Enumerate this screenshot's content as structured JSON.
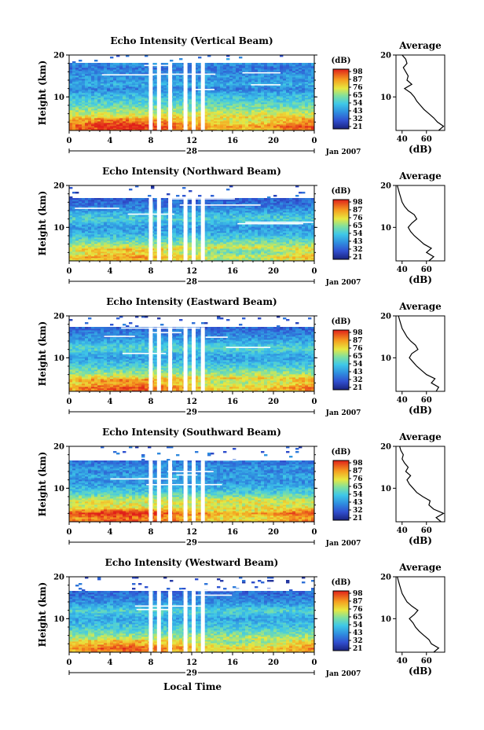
{
  "chart_data": [
    {
      "type": "heatmap",
      "title": "Echo Intensity (Vertical Beam)",
      "ylabel": "Height (km)",
      "y_ticks": [
        "20",
        "10"
      ],
      "x_ticks": [
        "0",
        "4",
        "8",
        "12",
        "16",
        "20",
        "0"
      ],
      "day_label": "28",
      "date_label": "Jan 2007",
      "colorbar_unit": "(dB)",
      "colorbar_ticks": [
        "98",
        "87",
        "76",
        "65",
        "54",
        "43",
        "32",
        "21"
      ],
      "profile_title": "Average",
      "profile_xlabel": "(dB)",
      "profile_x_ticks": [
        "40",
        "60"
      ],
      "profile_y_ticks": [
        "20",
        "10"
      ],
      "xlim": [
        0,
        24
      ],
      "ylim": [
        2,
        20
      ],
      "clim": [
        21,
        98
      ],
      "profile": {
        "height": [
          2,
          3,
          4,
          5,
          6,
          7,
          8,
          9,
          10,
          11,
          12,
          13,
          14,
          15,
          16,
          17,
          18,
          19,
          20
        ],
        "db": [
          70,
          74,
          69,
          66,
          62,
          58,
          55,
          52,
          50,
          47,
          42,
          48,
          44,
          45,
          43,
          41,
          44,
          43,
          40
        ]
      }
    },
    {
      "type": "heatmap",
      "title": "Echo Intensity (Northward Beam)",
      "ylabel": "Height (km)",
      "y_ticks": [
        "20",
        "10"
      ],
      "x_ticks": [
        "0",
        "4",
        "8",
        "12",
        "16",
        "20",
        "0"
      ],
      "day_label": "28",
      "date_label": "Jan 2007",
      "colorbar_unit": "(dB)",
      "colorbar_ticks": [
        "98",
        "87",
        "76",
        "65",
        "54",
        "43",
        "32",
        "21"
      ],
      "profile_title": "Average",
      "profile_xlabel": "(dB)",
      "profile_x_ticks": [
        "40",
        "60"
      ],
      "profile_y_ticks": [
        "20",
        "10"
      ],
      "xlim": [
        0,
        24
      ],
      "ylim": [
        2,
        20
      ],
      "clim": [
        21,
        98
      ],
      "profile": {
        "height": [
          2,
          3,
          4,
          5,
          6,
          7,
          8,
          9,
          10,
          11,
          12,
          13,
          14,
          15,
          16,
          17,
          18,
          19,
          20
        ],
        "db": [
          62,
          66,
          60,
          64,
          58,
          54,
          50,
          47,
          45,
          48,
          52,
          50,
          45,
          42,
          40,
          39,
          38,
          37,
          36
        ]
      }
    },
    {
      "type": "heatmap",
      "title": "Echo Intensity (Eastward Beam)",
      "ylabel": "Height (km)",
      "y_ticks": [
        "20",
        "10"
      ],
      "x_ticks": [
        "0",
        "4",
        "8",
        "12",
        "16",
        "20",
        "0"
      ],
      "day_label": "29",
      "date_label": "Jan 2007",
      "colorbar_unit": "(dB)",
      "colorbar_ticks": [
        "98",
        "87",
        "76",
        "65",
        "54",
        "43",
        "32",
        "21"
      ],
      "profile_title": "Average",
      "profile_xlabel": "(dB)",
      "profile_x_ticks": [
        "40",
        "60"
      ],
      "profile_y_ticks": [
        "20",
        "10"
      ],
      "xlim": [
        0,
        24
      ],
      "ylim": [
        2,
        20
      ],
      "clim": [
        21,
        98
      ],
      "profile": {
        "height": [
          2,
          3,
          4,
          5,
          6,
          7,
          8,
          9,
          10,
          11,
          12,
          13,
          14,
          15,
          16,
          17,
          18,
          19,
          20
        ],
        "db": [
          68,
          70,
          64,
          67,
          60,
          56,
          52,
          49,
          46,
          48,
          53,
          51,
          47,
          44,
          42,
          40,
          39,
          38,
          37
        ]
      }
    },
    {
      "type": "heatmap",
      "title": "Echo Intensity (Southward Beam)",
      "ylabel": "Height (km)",
      "y_ticks": [
        "20",
        "10"
      ],
      "x_ticks": [
        "0",
        "4",
        "8",
        "12",
        "16",
        "20",
        "0"
      ],
      "day_label": "29",
      "date_label": "Jan 2007",
      "colorbar_unit": "(dB)",
      "colorbar_ticks": [
        "98",
        "87",
        "76",
        "65",
        "54",
        "43",
        "32",
        "21"
      ],
      "profile_title": "Average",
      "profile_xlabel": "(dB)",
      "profile_x_ticks": [
        "40",
        "60"
      ],
      "profile_y_ticks": [
        "20",
        "10"
      ],
      "xlim": [
        0,
        24
      ],
      "ylim": [
        2,
        20
      ],
      "clim": [
        21,
        98
      ],
      "profile": {
        "height": [
          2,
          3,
          4,
          5,
          6,
          7,
          8,
          9,
          10,
          11,
          12,
          13,
          14,
          15,
          16,
          17,
          18,
          19,
          20
        ],
        "db": [
          72,
          68,
          74,
          66,
          62,
          63,
          57,
          52,
          49,
          46,
          44,
          47,
          43,
          45,
          42,
          40,
          41,
          39,
          38
        ]
      }
    },
    {
      "type": "heatmap",
      "title": "Echo Intensity (Westward Beam)",
      "ylabel": "Height (km)",
      "y_ticks": [
        "20",
        "10"
      ],
      "x_ticks": [
        "0",
        "4",
        "8",
        "12",
        "16",
        "20",
        "0"
      ],
      "day_label": "29",
      "date_label": "Jan 2007",
      "colorbar_unit": "(dB)",
      "colorbar_ticks": [
        "98",
        "87",
        "76",
        "65",
        "54",
        "43",
        "32",
        "21"
      ],
      "profile_title": "Average",
      "profile_xlabel": "(dB)",
      "profile_x_ticks": [
        "40",
        "60"
      ],
      "profile_y_ticks": [
        "20",
        "10"
      ],
      "xlim": [
        0,
        24
      ],
      "ylim": [
        2,
        20
      ],
      "clim": [
        21,
        98
      ],
      "profile": {
        "height": [
          2,
          3,
          4,
          5,
          6,
          7,
          8,
          9,
          10,
          11,
          12,
          13,
          14,
          15,
          16,
          17,
          18,
          19,
          20
        ],
        "db": [
          66,
          70,
          64,
          62,
          58,
          54,
          51,
          49,
          46,
          50,
          53,
          48,
          44,
          42,
          40,
          39,
          38,
          37,
          36
        ]
      }
    }
  ],
  "figure": {
    "xlabel": "Local Time"
  }
}
